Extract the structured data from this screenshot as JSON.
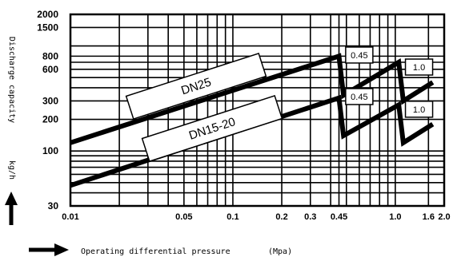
{
  "chart_data": {
    "type": "line",
    "title": "",
    "xlabel": "Operating differential pressure",
    "x_unit": "(Mpa)",
    "ylabel": "Discharge capacity",
    "y_unit": "kg/h",
    "x_scale": "log",
    "y_scale": "log",
    "xlim": [
      0.01,
      2.0
    ],
    "ylim": [
      30,
      2000
    ],
    "grid": true,
    "x_ticks": [
      {
        "value": 0.01,
        "label": "0.01"
      },
      {
        "value": 0.05,
        "label": "0.05"
      },
      {
        "value": 0.1,
        "label": "0.1"
      },
      {
        "value": 0.2,
        "label": "0.2"
      },
      {
        "value": 0.3,
        "label": "0.3"
      },
      {
        "value": 0.45,
        "label": "0.45"
      },
      {
        "value": 1.0,
        "label": "1.0"
      },
      {
        "value": 1.6,
        "label": "1.6"
      },
      {
        "value": 2.0,
        "label": "2.0"
      }
    ],
    "y_ticks": [
      {
        "value": 30,
        "label": "30"
      },
      {
        "value": 100,
        "label": "100"
      },
      {
        "value": 200,
        "label": "200"
      },
      {
        "value": 300,
        "label": "300"
      },
      {
        "value": 600,
        "label": "600"
      },
      {
        "value": 800,
        "label": "800"
      },
      {
        "value": 1500,
        "label": "1500"
      },
      {
        "value": 2000,
        "label": "2000"
      }
    ],
    "x_gridlines": [
      0.01,
      0.02,
      0.03,
      0.04,
      0.05,
      0.06,
      0.07,
      0.08,
      0.09,
      0.1,
      0.2,
      0.3,
      0.4,
      0.45,
      0.5,
      0.6,
      0.7,
      0.8,
      0.9,
      1.0,
      1.6,
      2.0
    ],
    "y_gridlines": [
      30,
      40,
      50,
      60,
      70,
      80,
      90,
      100,
      200,
      300,
      400,
      500,
      600,
      700,
      800,
      1000,
      1500,
      2000
    ],
    "series": [
      {
        "name": "DN25",
        "points": [
          [
            0.01,
            120
          ],
          [
            0.45,
            800
          ],
          [
            0.48,
            340
          ],
          [
            1.05,
            700
          ],
          [
            1.12,
            300
          ],
          [
            1.7,
            450
          ]
        ]
      },
      {
        "name": "DN15-20",
        "points": [
          [
            0.01,
            47
          ],
          [
            0.45,
            320
          ],
          [
            0.48,
            140
          ],
          [
            1.05,
            275
          ],
          [
            1.12,
            120
          ],
          [
            1.7,
            180
          ]
        ]
      }
    ],
    "pressure_labels": [
      {
        "text": "0.45",
        "x": 0.6,
        "y": 820
      },
      {
        "text": "1.0",
        "x": 1.4,
        "y": 630
      },
      {
        "text": "0.45",
        "x": 0.6,
        "y": 330
      },
      {
        "text": "1.0",
        "x": 1.4,
        "y": 250
      }
    ]
  }
}
